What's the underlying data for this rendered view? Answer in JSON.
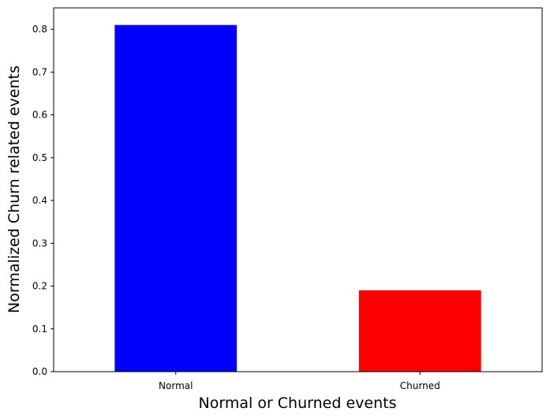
{
  "chart_data": {
    "type": "bar",
    "title": "",
    "xlabel": "Normal or Churned events",
    "ylabel": "Normalized Churn related events",
    "categories": [
      "Normal",
      "Churned"
    ],
    "values": [
      0.81,
      0.19
    ],
    "colors": [
      "#0000ff",
      "#ff0000"
    ],
    "ylim": [
      0,
      0.85
    ],
    "yticks": [
      0.0,
      0.1,
      0.2,
      0.3,
      0.4,
      0.5,
      0.6,
      0.7,
      0.8
    ],
    "ytick_labels": [
      "0.0",
      "0.1",
      "0.2",
      "0.3",
      "0.4",
      "0.5",
      "0.6",
      "0.7",
      "0.8"
    ],
    "grid": false,
    "legend": "none"
  }
}
